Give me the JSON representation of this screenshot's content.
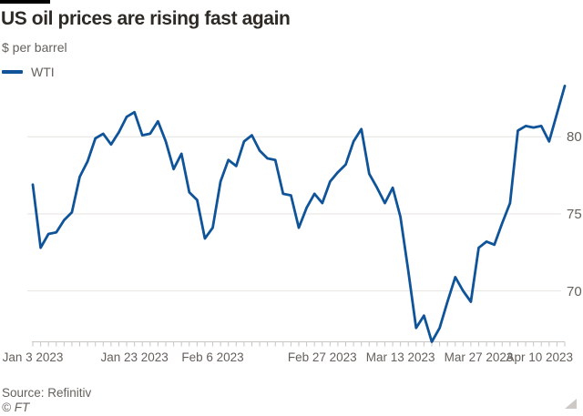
{
  "header": {
    "title": "US oil prices are rising fast again",
    "subtitle": "$ per barrel"
  },
  "legend": {
    "items": [
      {
        "label": "WTI",
        "color": "#0f5499"
      }
    ]
  },
  "footer": {
    "source": "Source: Refinitiv",
    "copyright": "© FT"
  },
  "colors": {
    "line": "#0f5499",
    "grid": "#e6e3e0",
    "axis": "#c9c5c2",
    "muted_text": "#66605c",
    "title_text": "#2e2a26",
    "background": "#ffffff",
    "brand_bar": "#000000"
  },
  "chart_data": {
    "type": "line",
    "title": "US oil prices are rising fast again",
    "xlabel": "",
    "ylabel": "$ per barrel",
    "grid": "horizontal",
    "legend_position": "top-left",
    "y_tick_side": "right",
    "y_ticks": [
      80,
      75,
      70
    ],
    "ylim": [
      66.7,
      83.5
    ],
    "x_tick_labels": [
      {
        "label": "Jan 3 2023",
        "index": 0
      },
      {
        "label": "Jan 23 2023",
        "index": 13
      },
      {
        "label": "Feb 6 2023",
        "index": 23
      },
      {
        "label": "Feb 27 2023",
        "index": 37
      },
      {
        "label": "Mar 13 2023",
        "index": 47
      },
      {
        "label": "Mar 27 2023",
        "index": 57
      },
      {
        "label": "Apr 10 2023",
        "index": 66
      }
    ],
    "series": [
      {
        "name": "WTI",
        "color": "#0f5499",
        "dates": [
          "2023-01-03",
          "2023-01-04",
          "2023-01-05",
          "2023-01-06",
          "2023-01-09",
          "2023-01-10",
          "2023-01-11",
          "2023-01-12",
          "2023-01-13",
          "2023-01-17",
          "2023-01-18",
          "2023-01-19",
          "2023-01-20",
          "2023-01-23",
          "2023-01-24",
          "2023-01-25",
          "2023-01-26",
          "2023-01-27",
          "2023-01-30",
          "2023-01-31",
          "2023-02-01",
          "2023-02-02",
          "2023-02-03",
          "2023-02-06",
          "2023-02-07",
          "2023-02-08",
          "2023-02-09",
          "2023-02-10",
          "2023-02-13",
          "2023-02-14",
          "2023-02-15",
          "2023-02-16",
          "2023-02-17",
          "2023-02-21",
          "2023-02-22",
          "2023-02-23",
          "2023-02-24",
          "2023-02-27",
          "2023-02-28",
          "2023-03-01",
          "2023-03-02",
          "2023-03-03",
          "2023-03-06",
          "2023-03-07",
          "2023-03-08",
          "2023-03-09",
          "2023-03-10",
          "2023-03-13",
          "2023-03-14",
          "2023-03-15",
          "2023-03-16",
          "2023-03-17",
          "2023-03-20",
          "2023-03-21",
          "2023-03-22",
          "2023-03-23",
          "2023-03-24",
          "2023-03-27",
          "2023-03-28",
          "2023-03-29",
          "2023-03-30",
          "2023-03-31",
          "2023-04-03",
          "2023-04-04",
          "2023-04-05",
          "2023-04-06",
          "2023-04-10",
          "2023-04-11",
          "2023-04-12"
        ],
        "values": [
          76.9,
          72.8,
          73.7,
          73.8,
          74.6,
          75.1,
          77.4,
          78.4,
          79.9,
          80.2,
          79.5,
          80.3,
          81.3,
          81.6,
          80.1,
          80.2,
          81.0,
          79.7,
          77.9,
          78.9,
          76.4,
          75.9,
          73.4,
          74.1,
          77.1,
          78.5,
          78.1,
          79.7,
          80.1,
          79.1,
          78.6,
          78.5,
          76.3,
          76.2,
          74.1,
          75.4,
          76.3,
          75.7,
          77.1,
          77.7,
          78.2,
          79.7,
          80.5,
          77.6,
          76.7,
          75.7,
          76.7,
          74.8,
          71.3,
          67.6,
          68.4,
          66.7,
          67.6,
          69.3,
          70.9,
          70.0,
          69.3,
          72.8,
          73.2,
          73.0,
          74.4,
          75.7,
          80.4,
          80.7,
          80.6,
          80.7,
          79.7,
          81.5,
          83.3
        ]
      }
    ]
  }
}
